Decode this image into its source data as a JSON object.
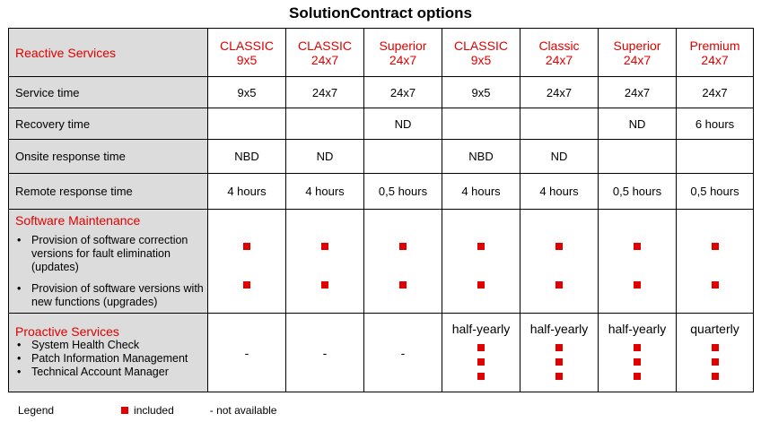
{
  "title": "SolutionContract options",
  "header": {
    "row_label": "Reactive Services",
    "columns": [
      {
        "line1": "CLASSIC",
        "line2": "9x5"
      },
      {
        "line1": "CLASSIC",
        "line2": "24x7"
      },
      {
        "line1": "Superior",
        "line2": "24x7"
      },
      {
        "line1": "CLASSIC",
        "line2": "9x5"
      },
      {
        "line1": "Classic",
        "line2": "24x7"
      },
      {
        "line1": "Superior",
        "line2": "24x7"
      },
      {
        "line1": "Premium",
        "line2": "24x7"
      }
    ]
  },
  "rows": [
    {
      "label": "Service time",
      "cells": [
        "9x5",
        "24x7",
        "24x7",
        "9x5",
        "24x7",
        "24x7",
        "24x7"
      ]
    },
    {
      "label": "Recovery time",
      "cells": [
        "",
        "",
        "ND",
        "",
        "",
        "ND",
        "6 hours"
      ]
    },
    {
      "label": "Onsite response  time",
      "cells": [
        "NBD",
        "ND",
        "",
        "NBD",
        "ND",
        "",
        ""
      ]
    },
    {
      "label": "Remote response time",
      "cells": [
        "4 hours",
        "4 hours",
        "0,5 hours",
        "4 hours",
        "4 hours",
        "0,5 hours",
        "0,5 hours"
      ]
    }
  ],
  "software_maintenance": {
    "title": "Software Maintenance",
    "items": [
      "Provision of software correction versions for fault elimination (updates)",
      "Provision of software versions with new functions (upgrades)"
    ],
    "included": [
      true,
      true,
      true,
      true,
      true,
      true,
      true
    ]
  },
  "proactive_services": {
    "title": "Proactive Services",
    "items": [
      "System Health Check",
      "Patch Information Management",
      "Technical Account Manager"
    ],
    "cells": [
      {
        "text": "-",
        "marks": 0
      },
      {
        "text": "-",
        "marks": 0
      },
      {
        "text": "-",
        "marks": 0
      },
      {
        "text": "half-yearly",
        "marks": 3
      },
      {
        "text": "half-yearly",
        "marks": 3
      },
      {
        "text": "half-yearly",
        "marks": 3
      },
      {
        "text": "quarterly",
        "marks": 3
      }
    ]
  },
  "legend": {
    "label": "Legend",
    "included": "included",
    "not_available": "-  not available"
  },
  "colors": {
    "accent_red": "#e00000",
    "label_bg": "#dcdcdc"
  }
}
